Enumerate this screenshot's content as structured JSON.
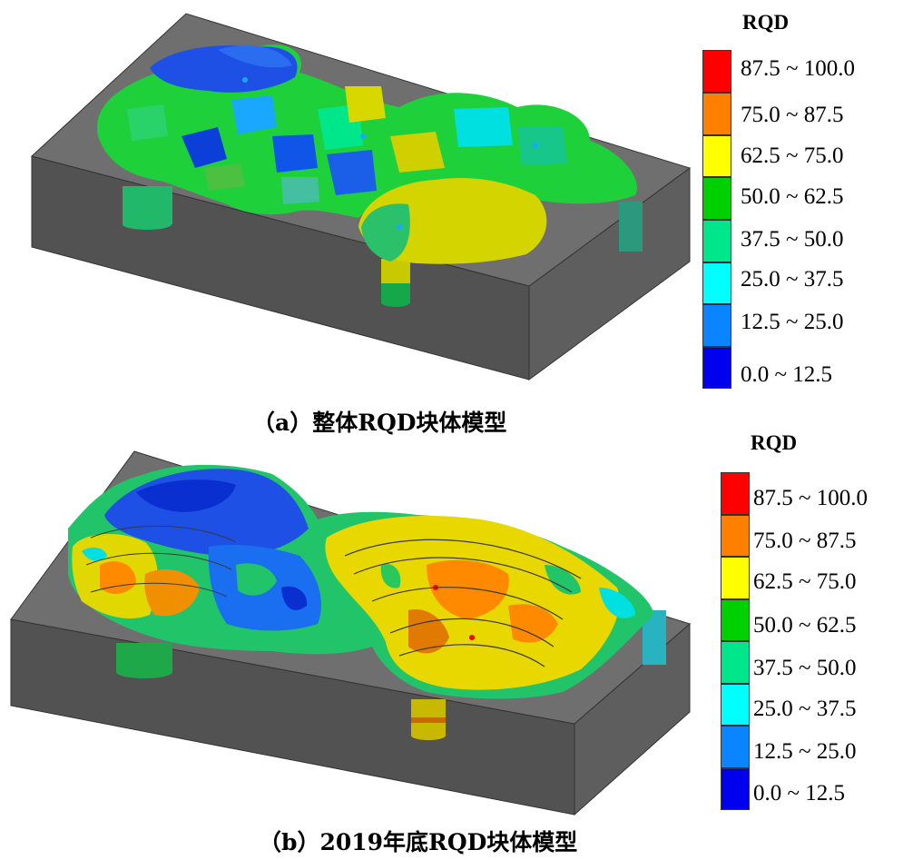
{
  "panels": [
    {
      "caption": "（a）整体RQD块体模型",
      "legend": {
        "title": "RQD",
        "classes": [
          {
            "label": "87.5 ~ 100.0",
            "color": "#ff0000"
          },
          {
            "label": "75.0 ~ 87.5",
            "color": "#ff8000"
          },
          {
            "label": "62.5 ~ 75.0",
            "color": "#ffff00"
          },
          {
            "label": "50.0 ~ 62.5",
            "color": "#00d000"
          },
          {
            "label": "37.5 ~ 50.0",
            "color": "#00e68a"
          },
          {
            "label": "25.0 ~ 37.5",
            "color": "#00ffff"
          },
          {
            "label": "12.5 ~ 25.0",
            "color": "#0a84ff"
          },
          {
            "label": "0.0 ~ 12.5",
            "color": "#0000ee"
          }
        ]
      }
    },
    {
      "caption": "（b）2019年底RQD块体模型",
      "legend": {
        "title": "RQD",
        "classes": [
          {
            "label": "87.5 ~ 100.0",
            "color": "#ff0000"
          },
          {
            "label": "75.0 ~ 87.5",
            "color": "#ff8000"
          },
          {
            "label": "62.5 ~ 75.0",
            "color": "#ffff00"
          },
          {
            "label": "50.0 ~ 62.5",
            "color": "#00d000"
          },
          {
            "label": "37.5 ~ 50.0",
            "color": "#00e68a"
          },
          {
            "label": "25.0 ~ 37.5",
            "color": "#00ffff"
          },
          {
            "label": "12.5 ~ 25.0",
            "color": "#0a84ff"
          },
          {
            "label": "0.0 ~ 12.5",
            "color": "#0000ee"
          }
        ]
      }
    }
  ],
  "colors": {
    "block_top": "#6e6e6e",
    "block_front": "#525252",
    "block_side": "#5c5c5c",
    "block_edge": "#333333"
  }
}
